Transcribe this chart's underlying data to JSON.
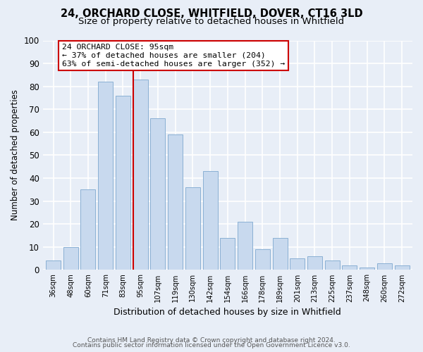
{
  "title": "24, ORCHARD CLOSE, WHITFIELD, DOVER, CT16 3LD",
  "subtitle": "Size of property relative to detached houses in Whitfield",
  "xlabel": "Distribution of detached houses by size in Whitfield",
  "ylabel": "Number of detached properties",
  "categories": [
    "36sqm",
    "48sqm",
    "60sqm",
    "71sqm",
    "83sqm",
    "95sqm",
    "107sqm",
    "119sqm",
    "130sqm",
    "142sqm",
    "154sqm",
    "166sqm",
    "178sqm",
    "189sqm",
    "201sqm",
    "213sqm",
    "225sqm",
    "237sqm",
    "248sqm",
    "260sqm",
    "272sqm"
  ],
  "values": [
    4,
    10,
    35,
    82,
    76,
    83,
    66,
    59,
    36,
    43,
    14,
    21,
    9,
    14,
    5,
    6,
    4,
    2,
    1,
    3,
    2
  ],
  "bar_color": "#c8d9ee",
  "bar_edge_color": "#8ab0d4",
  "highlight_index": 5,
  "highlight_line_color": "#cc0000",
  "ylim": [
    0,
    100
  ],
  "yticks": [
    0,
    10,
    20,
    30,
    40,
    50,
    60,
    70,
    80,
    90,
    100
  ],
  "annotation_title": "24 ORCHARD CLOSE: 95sqm",
  "annotation_line1": "← 37% of detached houses are smaller (204)",
  "annotation_line2": "63% of semi-detached houses are larger (352) →",
  "annotation_box_color": "#ffffff",
  "annotation_box_edge": "#cc0000",
  "footer1": "Contains HM Land Registry data © Crown copyright and database right 2024.",
  "footer2": "Contains public sector information licensed under the Open Government Licence v3.0.",
  "background_color": "#e8eef7",
  "grid_color": "#ffffff",
  "title_fontsize": 10.5,
  "subtitle_fontsize": 9.5
}
